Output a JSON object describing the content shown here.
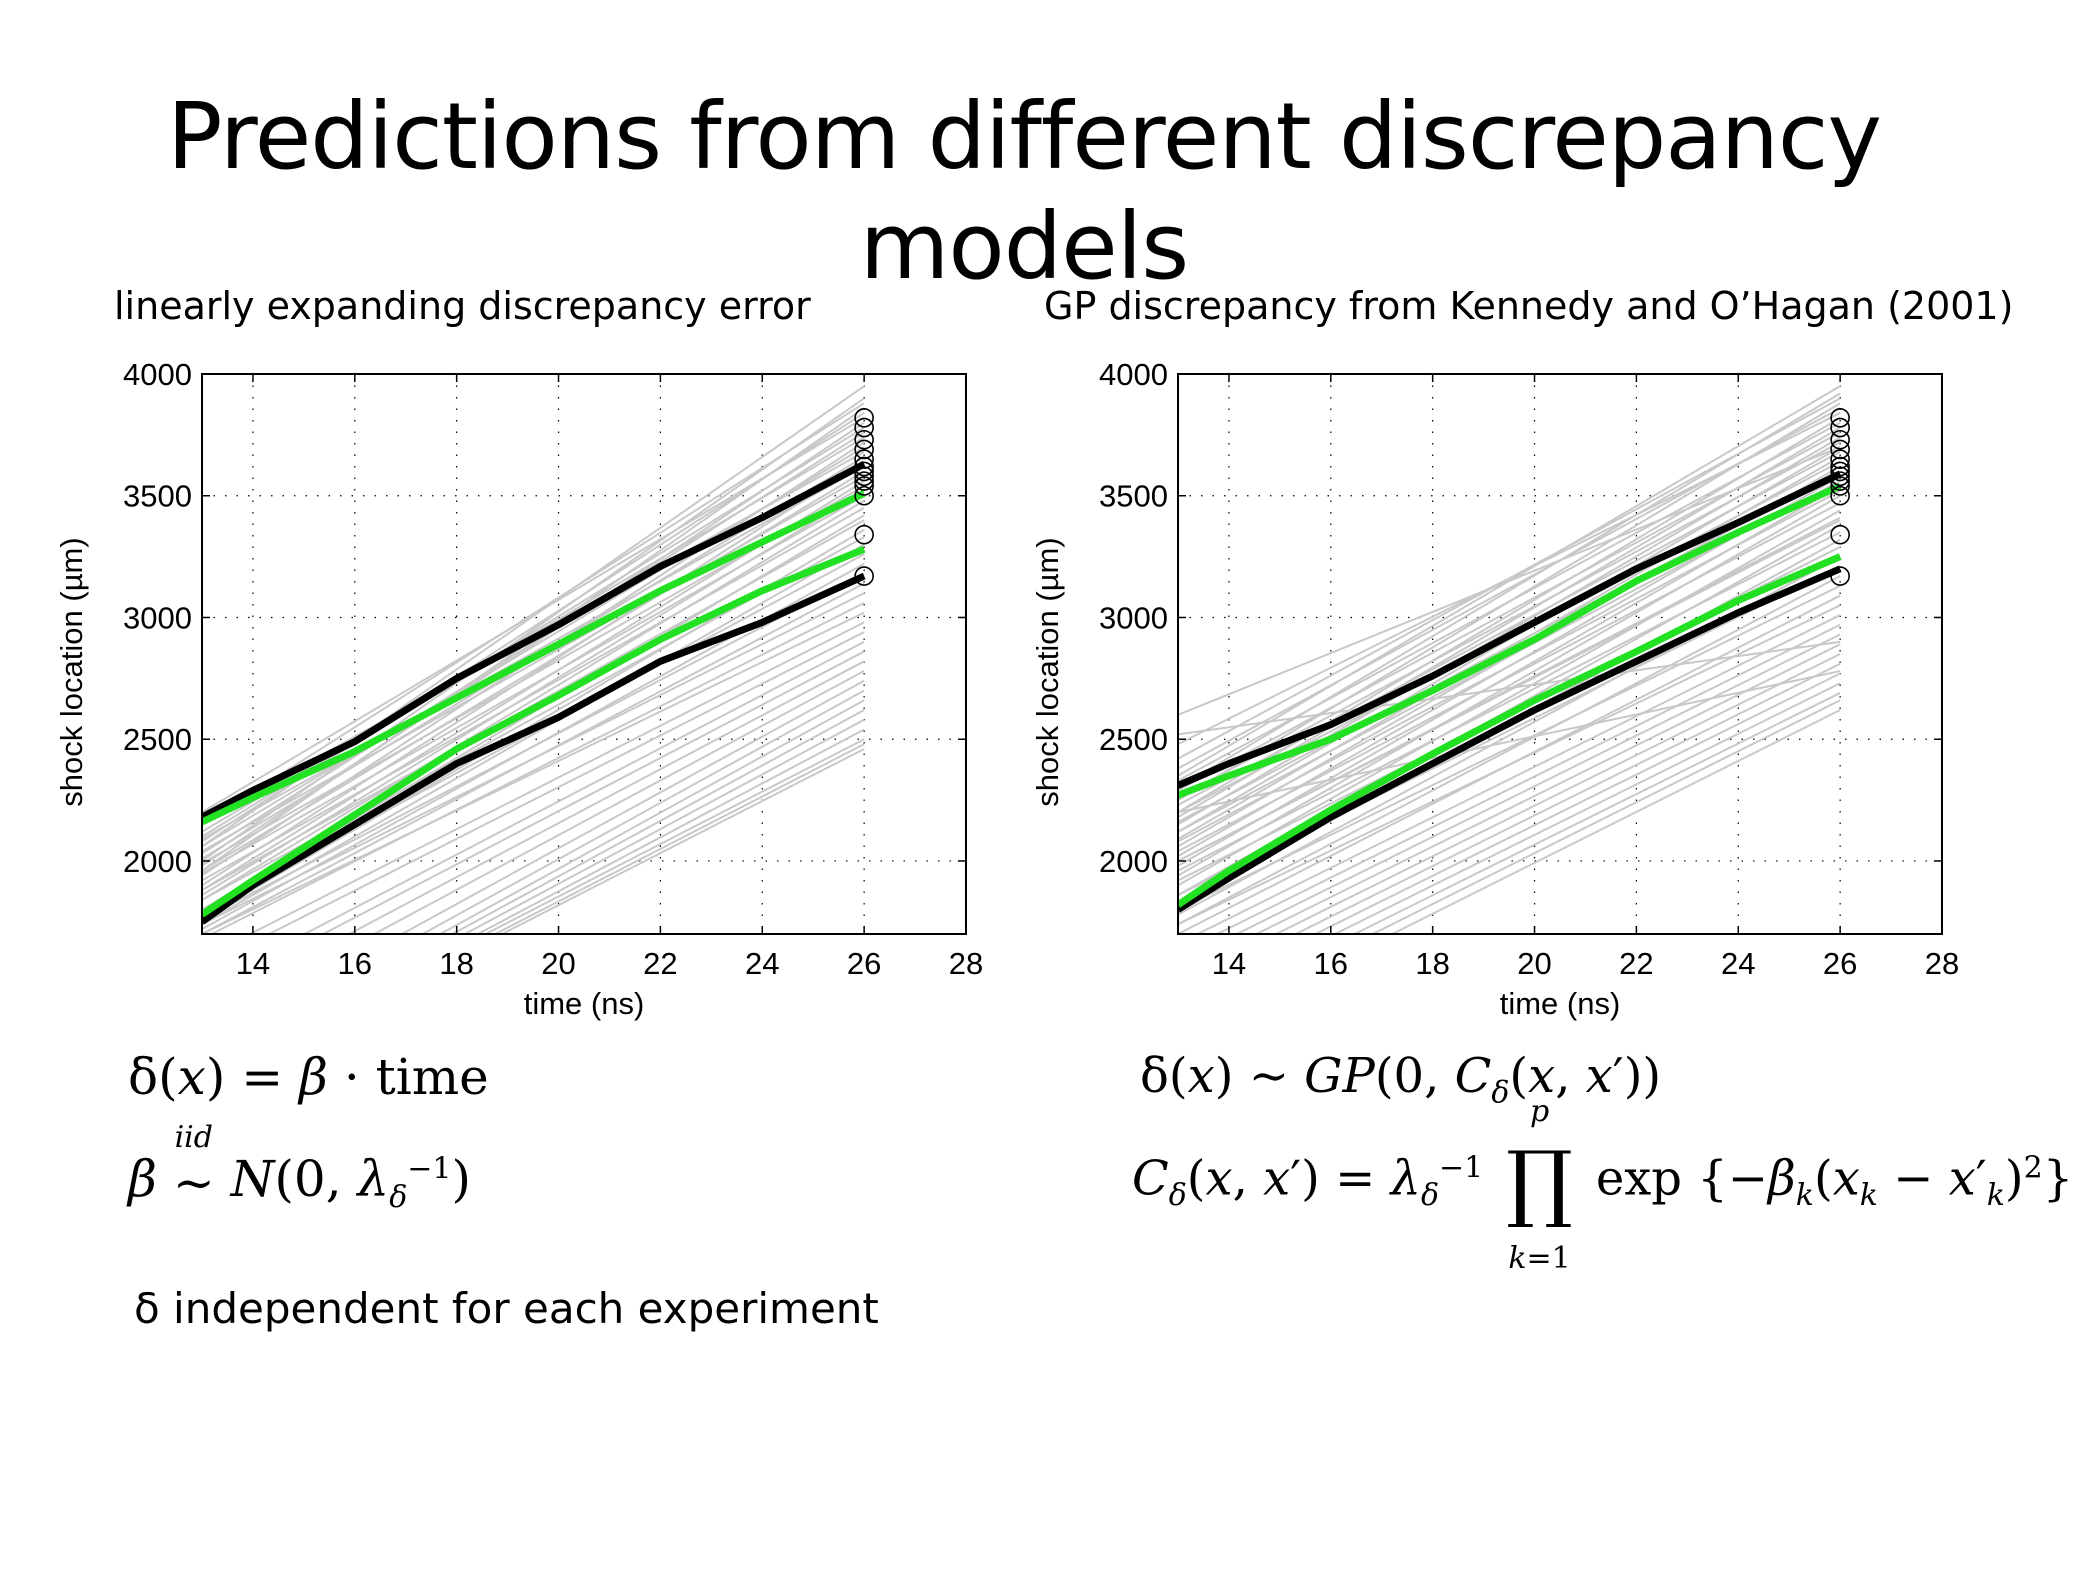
{
  "slide": {
    "title": "Predictions from different discrepancy models"
  },
  "panels": [
    {
      "title": "linearly expanding discrepancy error",
      "equations": [
        "δ(x) = β · time",
        "β ~iid N(0, λδ⁻¹)"
      ],
      "note": "δ independent for each experiment"
    },
    {
      "title": "GP discrepancy from Kennedy and O’Hagan (2001)",
      "equations": [
        "δ(x) ~ GP(0, Cδ(x, x′))",
        "Cδ(x, x′) = λδ⁻¹ ∏_{k=1}^{p} exp{−βk(xk − x′k)²}"
      ]
    }
  ],
  "colors": {
    "grey": "#c8c8c8",
    "black": "#000000",
    "green": "#22e022"
  },
  "chart_data": [
    {
      "type": "line",
      "title": "linearly expanding discrepancy error",
      "xlabel": "time (ns)",
      "ylabel": "shock location (µm)",
      "xlim": [
        13,
        28
      ],
      "ylim": [
        1700,
        4000
      ],
      "xticks": [
        14,
        16,
        18,
        20,
        22,
        24,
        26,
        28
      ],
      "yticks": [
        2000,
        2500,
        3000,
        3500,
        4000
      ],
      "grid": true,
      "series": [
        {
          "role": "upper-black",
          "color": "black",
          "x": [
            13,
            14,
            16,
            18,
            20,
            22,
            24,
            26
          ],
          "y": [
            2180,
            2290,
            2490,
            2750,
            2970,
            3210,
            3410,
            3630
          ]
        },
        {
          "role": "upper-green",
          "color": "green",
          "x": [
            13,
            14,
            16,
            18,
            20,
            22,
            24,
            26
          ],
          "y": [
            2160,
            2260,
            2450,
            2670,
            2890,
            3110,
            3310,
            3510
          ]
        },
        {
          "role": "lower-green",
          "color": "green",
          "x": [
            13,
            14,
            16,
            18,
            20,
            22,
            24,
            26
          ],
          "y": [
            1780,
            1920,
            2190,
            2460,
            2680,
            2910,
            3110,
            3280
          ]
        },
        {
          "role": "lower-black",
          "color": "black",
          "x": [
            13,
            14,
            16,
            18,
            20,
            22,
            24,
            26
          ],
          "y": [
            1750,
            1900,
            2150,
            2400,
            2590,
            2820,
            2980,
            3170
          ]
        }
      ],
      "grey_ensemble": [
        [
          2060,
          3950
        ],
        [
          2000,
          3900
        ],
        [
          2150,
          3880
        ],
        [
          1960,
          3860
        ],
        [
          2080,
          3840
        ],
        [
          2200,
          3820
        ],
        [
          1980,
          3800
        ],
        [
          2100,
          3780
        ],
        [
          2030,
          3760
        ],
        [
          2120,
          3740
        ],
        [
          1940,
          3720
        ],
        [
          2060,
          3700
        ],
        [
          2160,
          3680
        ],
        [
          2010,
          3660
        ],
        [
          1900,
          3640
        ],
        [
          2090,
          3620
        ],
        [
          1960,
          3600
        ],
        [
          2040,
          3580
        ],
        [
          1880,
          3560
        ],
        [
          1990,
          3540
        ],
        [
          1860,
          3520
        ],
        [
          1950,
          3500
        ],
        [
          1840,
          3480
        ],
        [
          1920,
          3450
        ],
        [
          1800,
          3420
        ],
        [
          1880,
          3400
        ],
        [
          1760,
          3360
        ],
        [
          1840,
          3330
        ],
        [
          1740,
          3300
        ],
        [
          1800,
          3260
        ],
        [
          1720,
          3220
        ],
        [
          1760,
          3180
        ],
        [
          1700,
          3140
        ],
        [
          1740,
          3100
        ],
        [
          1680,
          3060
        ],
        [
          1700,
          3020
        ],
        [
          1600,
          2980
        ],
        [
          1560,
          2940
        ],
        [
          1480,
          2900
        ],
        [
          1440,
          2860
        ],
        [
          1380,
          2820
        ],
        [
          1320,
          2780
        ],
        [
          1250,
          2740
        ],
        [
          1200,
          2700
        ],
        [
          1160,
          2660
        ],
        [
          1140,
          2620
        ],
        [
          1120,
          2580
        ],
        [
          1100,
          2540
        ],
        [
          1100,
          2500
        ],
        [
          1080,
          2480
        ],
        [
          1070,
          2460
        ]
      ],
      "observations": {
        "x": 26,
        "y": [
          3820,
          3780,
          3730,
          3690,
          3650,
          3620,
          3600,
          3580,
          3560,
          3540,
          3500,
          3340,
          3170
        ]
      }
    },
    {
      "type": "line",
      "title": "GP discrepancy from Kennedy and O’Hagan (2001)",
      "xlabel": "time (ns)",
      "ylabel": "shock location (µm)",
      "xlim": [
        13,
        28
      ],
      "ylim": [
        1700,
        4000
      ],
      "xticks": [
        14,
        16,
        18,
        20,
        22,
        24,
        26,
        28
      ],
      "yticks": [
        2000,
        2500,
        3000,
        3500,
        4000
      ],
      "grid": true,
      "series": [
        {
          "role": "upper-black",
          "color": "black",
          "x": [
            13,
            14,
            16,
            18,
            20,
            22,
            24,
            26
          ],
          "y": [
            2310,
            2400,
            2560,
            2760,
            2980,
            3200,
            3390,
            3590
          ]
        },
        {
          "role": "upper-green",
          "color": "green",
          "x": [
            13,
            14,
            16,
            18,
            20,
            22,
            24,
            26
          ],
          "y": [
            2270,
            2350,
            2500,
            2700,
            2910,
            3150,
            3350,
            3540
          ]
        },
        {
          "role": "lower-green",
          "color": "green",
          "x": [
            13,
            14,
            16,
            18,
            20,
            22,
            24,
            26
          ],
          "y": [
            1820,
            1960,
            2210,
            2440,
            2660,
            2860,
            3070,
            3250
          ]
        },
        {
          "role": "lower-black",
          "color": "black",
          "x": [
            13,
            14,
            16,
            18,
            20,
            22,
            24,
            26
          ],
          "y": [
            1800,
            1930,
            2180,
            2400,
            2620,
            2820,
            3020,
            3200
          ]
        }
      ],
      "grey_ensemble": [
        [
          2350,
          3950
        ],
        [
          2300,
          3920
        ],
        [
          2420,
          3900
        ],
        [
          2250,
          3880
        ],
        [
          2380,
          3860
        ],
        [
          2480,
          3840
        ],
        [
          2200,
          3820
        ],
        [
          2330,
          3800
        ],
        [
          2180,
          3780
        ],
        [
          2290,
          3760
        ],
        [
          2150,
          3740
        ],
        [
          2260,
          3720
        ],
        [
          2120,
          3700
        ],
        [
          2230,
          3680
        ],
        [
          2090,
          3660
        ],
        [
          2200,
          3640
        ],
        [
          2060,
          3620
        ],
        [
          2160,
          3600
        ],
        [
          2020,
          3580
        ],
        [
          2120,
          3560
        ],
        [
          1980,
          3540
        ],
        [
          2080,
          3520
        ],
        [
          1940,
          3500
        ],
        [
          2040,
          3470
        ],
        [
          1900,
          3440
        ],
        [
          2000,
          3410
        ],
        [
          1860,
          3380
        ],
        [
          1960,
          3350
        ],
        [
          1820,
          3320
        ],
        [
          1920,
          3290
        ],
        [
          1780,
          3250
        ],
        [
          1860,
          3210
        ],
        [
          1740,
          3170
        ],
        [
          1800,
          3130
        ],
        [
          1700,
          3090
        ],
        [
          1740,
          3050
        ],
        [
          1660,
          3010
        ],
        [
          1620,
          2970
        ],
        [
          1580,
          2930
        ],
        [
          1540,
          2890
        ],
        [
          1500,
          2850
        ],
        [
          1460,
          2810
        ],
        [
          1420,
          2770
        ],
        [
          1380,
          2730
        ],
        [
          1340,
          2690
        ],
        [
          1300,
          2660
        ],
        [
          1260,
          2620
        ],
        [
          2520,
          2900
        ],
        [
          2200,
          2780
        ],
        [
          2000,
          3400
        ],
        [
          2600,
          3700
        ]
      ],
      "observations": {
        "x": 26,
        "y": [
          3820,
          3780,
          3730,
          3690,
          3650,
          3620,
          3600,
          3580,
          3560,
          3540,
          3500,
          3340,
          3170
        ]
      }
    }
  ]
}
